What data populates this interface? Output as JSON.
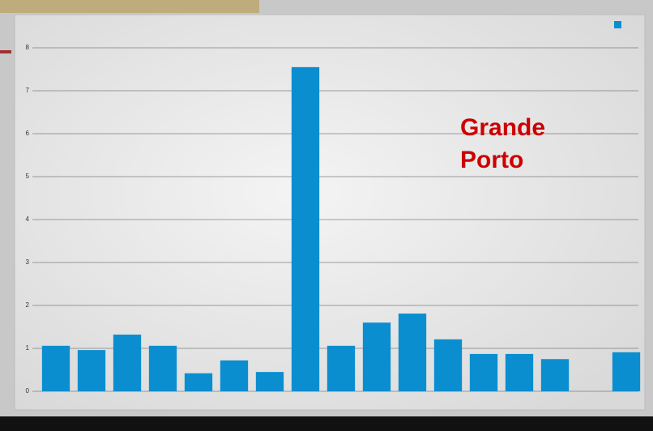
{
  "chart_data": {
    "type": "bar",
    "annotation": "Grande Porto",
    "categories": [
      null,
      null,
      null,
      null,
      null,
      null,
      null,
      null,
      null,
      null,
      null,
      null,
      null,
      null,
      null,
      null,
      null
    ],
    "values": [
      1.06,
      0.96,
      1.32,
      1.06,
      0.42,
      0.72,
      0.45,
      7.55,
      1.06,
      1.6,
      1.81,
      1.21,
      0.87,
      0.87,
      0.75,
      0,
      0.91
    ],
    "color": "#0a8ed0",
    "ylim": [
      0,
      8.5
    ],
    "yticks": [
      0,
      1,
      2,
      3,
      4,
      5,
      6,
      7,
      8
    ],
    "grid": true
  }
}
